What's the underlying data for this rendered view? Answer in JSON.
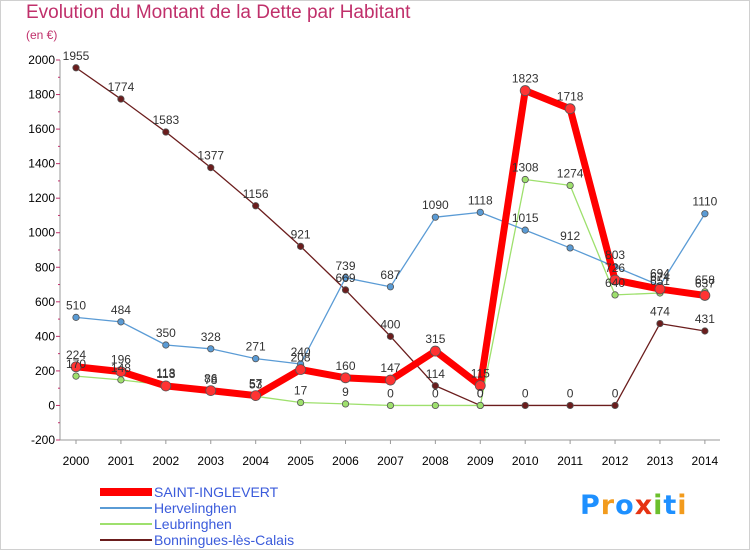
{
  "chart_data": {
    "type": "line",
    "title": "Evolution du Montant de la Dette par Habitant",
    "unit_label": "(en €)",
    "x": [
      "2000",
      "2001",
      "2002",
      "2003",
      "2004",
      "2005",
      "2006",
      "2007",
      "2008",
      "2009",
      "2010",
      "2011",
      "2012",
      "2013",
      "2014"
    ],
    "ylim": [
      -200,
      2000
    ],
    "yticks": [
      -200,
      0,
      200,
      400,
      600,
      800,
      1000,
      1200,
      1400,
      1600,
      1800,
      2000
    ],
    "grid": false,
    "legend_position": "bottom-left",
    "series": [
      {
        "name": "SAINT-INGLEVERT",
        "color": "#ff0000",
        "values": [
          224,
          196,
          113,
          86,
          57,
          208,
          160,
          147,
          315,
          115,
          1823,
          1718,
          726,
          674,
          637
        ]
      },
      {
        "name": "Hervelinghen",
        "color": "#5a9bd5",
        "values": [
          510,
          484,
          350,
          328,
          271,
          240,
          739,
          687,
          1090,
          1118,
          1015,
          912,
          803,
          694,
          1110
        ]
      },
      {
        "name": "Leubringhen",
        "color": "#9ee06d",
        "values": [
          170,
          148,
          118,
          78,
          53,
          17,
          9,
          0,
          0,
          0,
          1308,
          1274,
          640,
          651,
          658
        ]
      },
      {
        "name": "Bonningues-lès-Calais",
        "color": "#6b1d1d",
        "values": [
          1955,
          1774,
          1583,
          1377,
          1156,
          921,
          669,
          400,
          114,
          0,
          0,
          0,
          0,
          474,
          431
        ]
      }
    ]
  },
  "logo": {
    "letters": [
      "P",
      "r",
      "o",
      "x",
      "i",
      "t",
      "i"
    ],
    "colors": [
      "#1e90ff",
      "#f29b1d",
      "#1e90ff",
      "#e63312",
      "#6cbf2c",
      "#1e90ff",
      "#f29b1d"
    ]
  }
}
